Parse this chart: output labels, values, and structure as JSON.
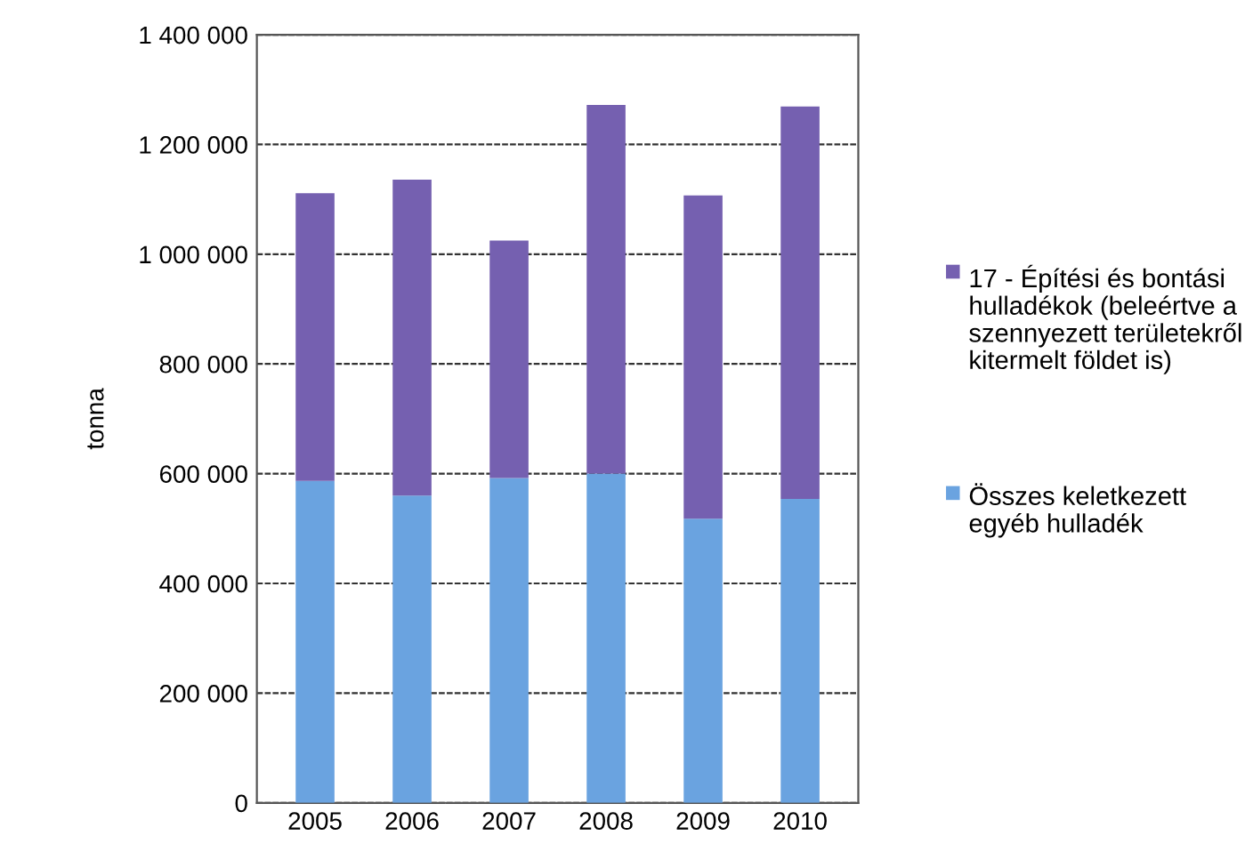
{
  "chart_data": {
    "type": "bar",
    "stacked": true,
    "ylabel": "tonna",
    "categories": [
      "2005",
      "2006",
      "2007",
      "2008",
      "2009",
      "2010"
    ],
    "series": [
      {
        "name": "Összes keletkezett egyéb hulladék",
        "color": "#6aa3e0",
        "values": [
          587000,
          560000,
          592000,
          600000,
          518000,
          554000
        ]
      },
      {
        "name": "17 - Építési és bontási hulladékok (beleértve a szennyezett területekről kitermelt földet is)",
        "color": "#7560b0",
        "values": [
          524000,
          576000,
          433000,
          672000,
          589000,
          715000
        ]
      }
    ],
    "ylim": [
      0,
      1400000
    ],
    "yticks": [
      {
        "value": 0,
        "label": "0"
      },
      {
        "value": 200000,
        "label": "200 000"
      },
      {
        "value": 400000,
        "label": "400 000"
      },
      {
        "value": 600000,
        "label": "600 000"
      },
      {
        "value": 800000,
        "label": "800 000"
      },
      {
        "value": 1000000,
        "label": "1 000 000"
      },
      {
        "value": 1200000,
        "label": "1 200 000"
      },
      {
        "value": 1400000,
        "label": "1 400 000"
      }
    ],
    "grid": "y",
    "legend": "right"
  }
}
